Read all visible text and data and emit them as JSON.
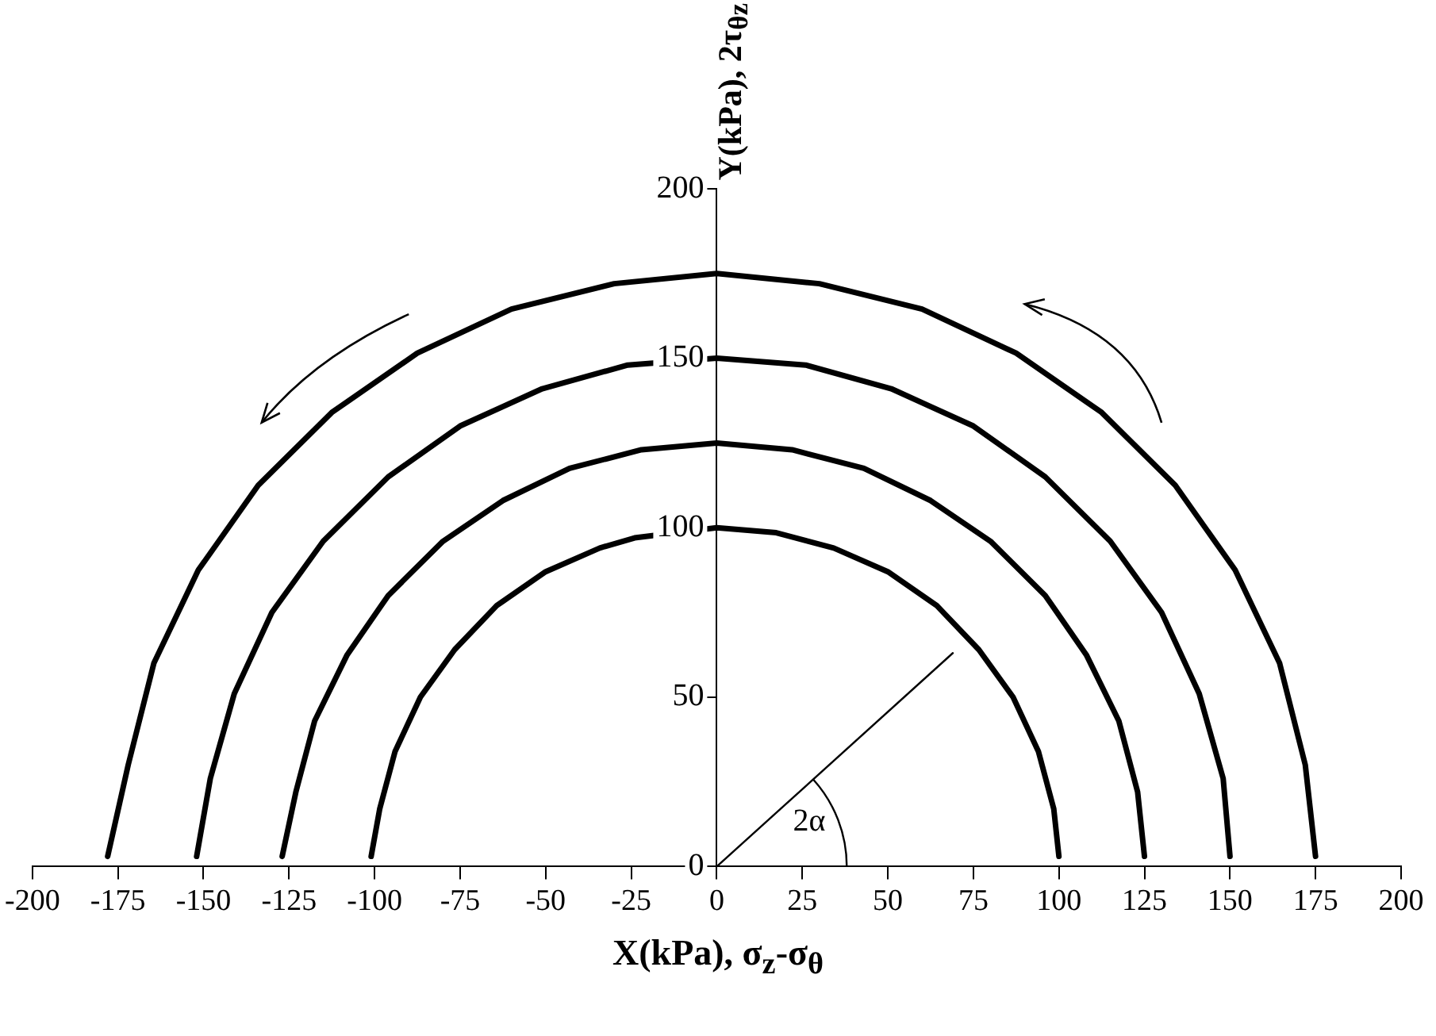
{
  "chart_data": {
    "type": "line",
    "xlabel": "X(kPa), σ$_{z}$-σ$_{θ}$",
    "ylabel": "Y(kPa), 2τ$_{θz}$",
    "xlim": [
      -200,
      200
    ],
    "xticks": [
      -200,
      -175,
      -150,
      -125,
      -100,
      -75,
      -50,
      -25,
      0,
      25,
      50,
      75,
      100,
      125,
      150,
      175,
      200
    ],
    "ylim": [
      0,
      200
    ],
    "yticks": [
      0,
      50,
      100,
      150,
      200
    ],
    "grid": false,
    "legend": false,
    "marker": "none",
    "line_style": "solid",
    "series": [
      {
        "color": "#000000",
        "x": [
          100,
          98.5,
          94,
          86.6,
          76.6,
          64.3,
          50,
          34.2,
          17.4,
          0,
          -24,
          -34.2,
          -50,
          -64.3,
          -76.6,
          -86.6,
          -94,
          -98.5,
          -101
        ],
        "values": [
          3,
          17,
          34,
          50,
          64,
          77,
          87,
          94,
          98.5,
          100,
          97,
          94,
          87,
          77,
          64,
          50,
          34,
          17,
          3
        ]
      },
      {
        "color": "#000000",
        "x": [
          125,
          123,
          117.5,
          108,
          96,
          80,
          62.5,
          43,
          22,
          0,
          -22,
          -43,
          -62.5,
          -80,
          -96,
          -108,
          -117.5,
          -123,
          -127
        ],
        "values": [
          3,
          22,
          43,
          62.5,
          80,
          96,
          108,
          117.5,
          123,
          125,
          123,
          117.5,
          108,
          96,
          80,
          62.5,
          43,
          22,
          3
        ]
      },
      {
        "color": "#000000",
        "x": [
          150,
          148,
          141,
          130,
          115,
          96,
          75,
          51,
          26,
          0,
          -26,
          -51,
          -75,
          -96,
          -115,
          -130,
          -141,
          -148,
          -152
        ],
        "values": [
          3,
          26,
          51,
          75,
          96,
          115,
          130,
          141,
          148,
          150,
          148,
          141,
          130,
          115,
          96,
          75,
          51,
          26,
          3
        ]
      },
      {
        "color": "#000000",
        "x": [
          175,
          172,
          164.5,
          151.5,
          134,
          112.5,
          87.5,
          60,
          30,
          0,
          -30,
          -60,
          -87.5,
          -112.5,
          -134,
          -151.5,
          -164.5,
          -172,
          -178
        ],
        "values": [
          3,
          30,
          60,
          87.5,
          112.5,
          134,
          151.5,
          164.5,
          172,
          175,
          172,
          164.5,
          151.5,
          134,
          112.5,
          87.5,
          60,
          30,
          3
        ]
      },
      {
        "type": "line",
        "color": "#000000",
        "x": [
          0,
          69
        ],
        "values": [
          0,
          63
        ]
      }
    ],
    "annotations": [
      "2α"
    ]
  }
}
